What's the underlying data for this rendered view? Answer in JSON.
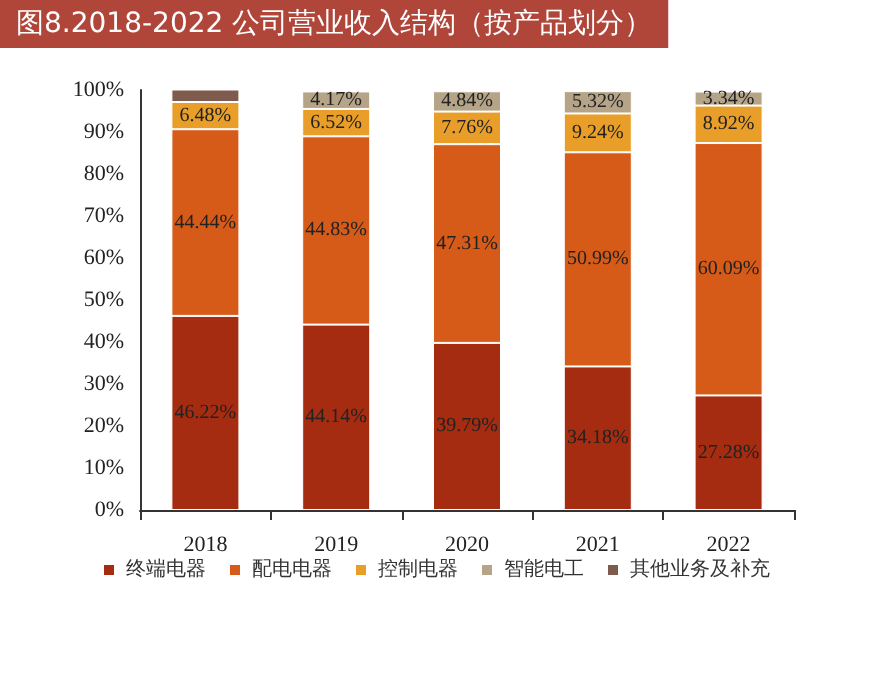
{
  "chart_data": {
    "type": "bar",
    "title": "图8.2018-2022 公司营业收入结构（按产品划分）",
    "stacked": true,
    "categories": [
      "2018",
      "2019",
      "2020",
      "2021",
      "2022"
    ],
    "series": [
      {
        "name": "终端电器",
        "color": "#a52c10",
        "values": [
          46.22,
          44.14,
          39.79,
          34.18,
          27.28
        ],
        "value_labels": [
          "46.22%",
          "44.14%",
          "39.79%",
          "34.18%",
          "27.28%"
        ]
      },
      {
        "name": "配电电器",
        "color": "#d65a18",
        "values": [
          44.44,
          44.83,
          47.31,
          50.99,
          60.09
        ],
        "value_labels": [
          "44.44%",
          "44.83%",
          "47.31%",
          "50.99%",
          "60.09%"
        ]
      },
      {
        "name": "控制电器",
        "color": "#e89e28",
        "values": [
          6.48,
          6.52,
          7.76,
          9.24,
          8.92
        ],
        "value_labels": [
          "6.48%",
          "6.52%",
          "7.76%",
          "9.24%",
          "8.92%"
        ]
      },
      {
        "name": "智能电工",
        "color": "#b5a488",
        "values": [
          null,
          4.17,
          4.84,
          5.32,
          3.34
        ],
        "value_labels": [
          null,
          "4.17%",
          "4.84%",
          "5.32%",
          "3.34%"
        ]
      },
      {
        "name": "其他业务及补充",
        "color": "#7f5b4d",
        "values": [
          3,
          null,
          null,
          null,
          null
        ],
        "value_labels": [
          null,
          null,
          null,
          null,
          null
        ]
      }
    ],
    "ylim": [
      0,
      100
    ],
    "yticks": [
      {
        "value": 0,
        "label": "0%"
      },
      {
        "value": 10,
        "label": "10%"
      },
      {
        "value": 20,
        "label": "20%"
      },
      {
        "value": 30,
        "label": "30%"
      },
      {
        "value": 40,
        "label": "40%"
      },
      {
        "value": 50,
        "label": "50%"
      },
      {
        "value": 60,
        "label": "60%"
      },
      {
        "value": 70,
        "label": "70%"
      },
      {
        "value": 80,
        "label": "80%"
      },
      {
        "value": 90,
        "label": "90%"
      },
      {
        "value": 100,
        "label": "100%"
      }
    ],
    "grid": false,
    "legend": "bottom"
  }
}
